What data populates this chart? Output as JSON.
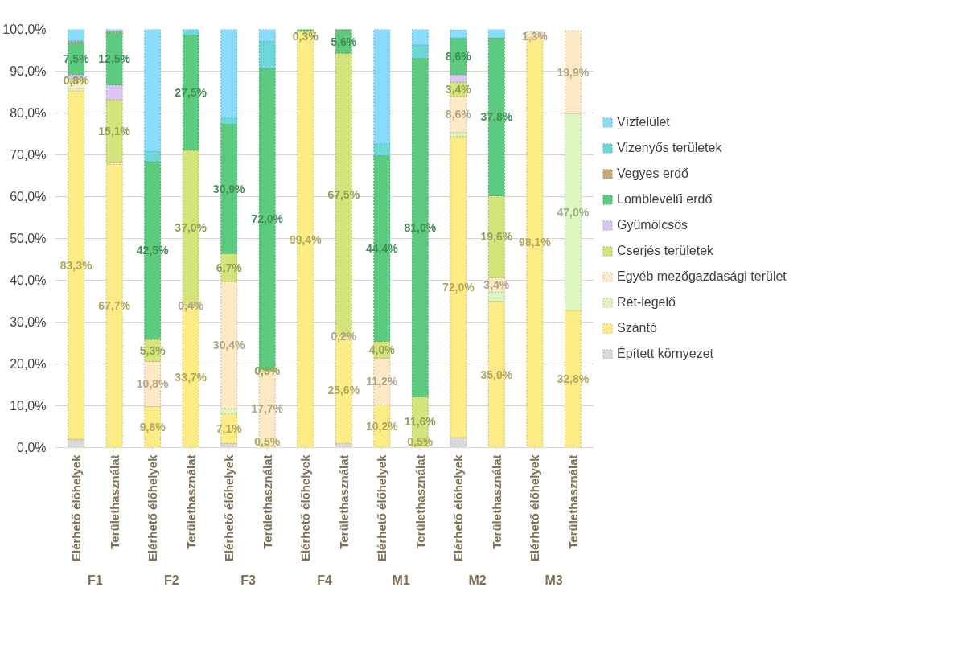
{
  "chart_data": {
    "type": "bar",
    "stacked": true,
    "categories": [
      "Elérhető élőhelyek",
      "Területhasználat",
      "Elérhető élőhelyek",
      "Területhasználat",
      "Elérhető élőhelyek",
      "Területhasználat",
      "Elérhető élőhelyek",
      "Területhasználat",
      "Elérhető élőhelyek",
      "Területhasználat",
      "Elérhető élőhelyek",
      "Területhasználat",
      "Elérhető élőhelyek",
      "Területhasználat"
    ],
    "annotations": [
      "F1",
      "F2",
      "F3",
      "F4",
      "M1",
      "M2",
      "M3"
    ],
    "ylim": [
      0,
      100
    ],
    "yticks": [
      {
        "value": 0,
        "label": "0,0%"
      },
      {
        "value": 10,
        "label": "10,0%"
      },
      {
        "value": 20,
        "label": "20,0%"
      },
      {
        "value": 30,
        "label": "30,0%"
      },
      {
        "value": 40,
        "label": "40,0%"
      },
      {
        "value": 50,
        "label": "50,0%"
      },
      {
        "value": 60,
        "label": "60,0%"
      },
      {
        "value": 70,
        "label": "70,0%"
      },
      {
        "value": 80,
        "label": "80,0%"
      },
      {
        "value": 90,
        "label": "90,0%"
      },
      {
        "value": 100,
        "label": "100,0%"
      }
    ],
    "grid": "y",
    "legend": "right",
    "series": [
      {
        "name": "Épített környezet",
        "color": "#d9d9d9",
        "values": [
          2.0,
          null,
          null,
          null,
          1.0,
          null,
          null,
          1.0,
          null,
          null,
          2.4,
          null,
          null,
          null
        ]
      },
      {
        "name": "Szántó",
        "color": "#fcec86",
        "values": [
          83.3,
          67.7,
          9.8,
          33.7,
          7.1,
          0.5,
          99.4,
          25.6,
          10.2,
          0.5,
          72.0,
          35.0,
          98.1,
          32.8
        ],
        "value_labels": [
          "83,3%",
          "67,7%",
          "9,8%",
          "33,7%",
          "7,1%",
          "0,5%",
          "99,4%",
          "25,6%",
          "10,2%",
          "0,5%",
          "72,0%",
          "35,0%",
          "98,1%",
          "32,8%"
        ]
      },
      {
        "name": "Rét-legelő",
        "color": "#ddf7c0",
        "values": [
          0.6,
          null,
          null,
          null,
          1.2,
          null,
          null,
          null,
          null,
          null,
          1.0,
          2.2,
          null,
          47.0
        ],
        "value_labels": [
          null,
          null,
          null,
          null,
          null,
          null,
          null,
          null,
          null,
          null,
          null,
          null,
          null,
          "47,0%"
        ]
      },
      {
        "name": "Egyéb mezőgazdasági terület",
        "color": "#fde9c4",
        "values": [
          1.5,
          0.4,
          10.8,
          0.4,
          30.4,
          17.7,
          null,
          0.2,
          11.2,
          null,
          8.6,
          3.4,
          1.3,
          19.9
        ],
        "value_labels": [
          null,
          null,
          "10,8%",
          "0,4%",
          "30,4%",
          "17,7%",
          null,
          "0,2%",
          "11,2%",
          null,
          "8,6%",
          "3,4%",
          "1,3%",
          "19,9%"
        ]
      },
      {
        "name": "Cserjés területek",
        "color": "#d4e37a",
        "values": [
          0.8,
          15.1,
          5.3,
          37.0,
          6.7,
          0.5,
          0.3,
          67.5,
          4.0,
          11.6,
          3.4,
          19.6,
          null,
          null
        ],
        "value_labels": [
          "0,8%",
          "15,1%",
          "5,3%",
          "37,0%",
          "6,7%",
          "0,5%",
          "0,3%",
          "67,5%",
          "4,0%",
          "11,6%",
          "3,4%",
          "19,6%",
          null,
          null
        ]
      },
      {
        "name": "Gyümölcsös",
        "color": "#dcc5f5",
        "values": [
          1.0,
          3.5,
          null,
          null,
          null,
          null,
          null,
          null,
          null,
          null,
          1.8,
          null,
          null,
          null
        ]
      },
      {
        "name": "Lomblevelű erdő",
        "color": "#5dcb7f",
        "values": [
          7.5,
          12.5,
          42.5,
          27.5,
          30.9,
          72.0,
          0.3,
          5.6,
          44.4,
          81.0,
          8.6,
          37.8,
          null,
          null
        ],
        "value_labels": [
          "7,5%",
          "12,5%",
          "42,5%",
          "27,5%",
          "30,9%",
          "72,0%",
          null,
          "5,6%",
          "44,4%",
          "81,0%",
          "8,6%",
          "37,8%",
          null,
          null
        ]
      },
      {
        "name": "Vegyes erdő",
        "color": "#c8a878",
        "values": [
          0.3,
          0.3,
          null,
          null,
          null,
          null,
          null,
          0.1,
          null,
          null,
          null,
          null,
          null,
          null
        ]
      },
      {
        "name": "Vizenyős területek",
        "color": "#6dd8d8",
        "values": [
          0.3,
          null,
          2.4,
          1.4,
          1.5,
          6.4,
          null,
          null,
          2.9,
          3.2,
          0.2,
          null,
          null,
          null
        ]
      },
      {
        "name": "Vízfelület",
        "color": "#8adcfc",
        "values": [
          2.7,
          0.5,
          29.2,
          null,
          21.2,
          2.9,
          null,
          null,
          27.3,
          3.7,
          1.9,
          2.0,
          null,
          null
        ]
      }
    ]
  }
}
